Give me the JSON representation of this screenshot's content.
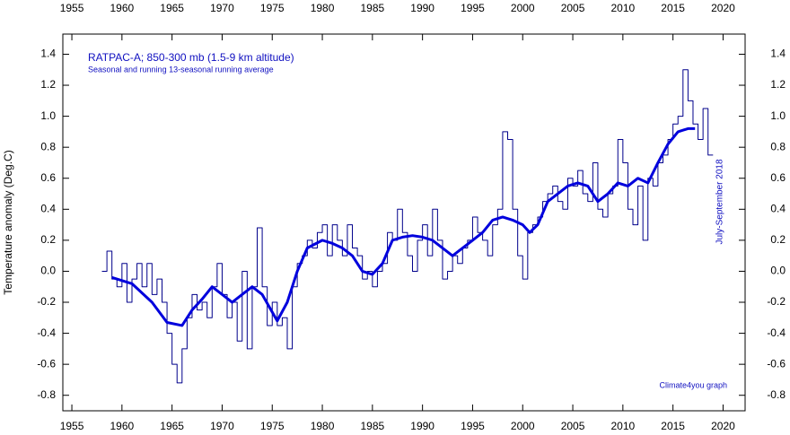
{
  "chart_data": {
    "type": "line",
    "title": "RATPAC-A; 850-300 mb (1.5-9 km altitude)",
    "subtitle": "Seasonal and running 13-seasonal running average",
    "y_label": "Temperature anomaly (Deg.C)",
    "annotations": [
      "July-September 2018",
      "Climate4you graph"
    ],
    "xlim": [
      1954.1,
      2022.2
    ],
    "ylim": [
      -0.9,
      1.53
    ],
    "xticks": [
      1955,
      1960,
      1965,
      1970,
      1975,
      1980,
      1985,
      1990,
      1995,
      2000,
      2005,
      2010,
      2015,
      2020
    ],
    "yticks": [
      {
        "value": -0.8,
        "label": "-0.8"
      },
      {
        "value": -0.6,
        "label": "-0.6"
      },
      {
        "value": -0.4,
        "label": "-0.4"
      },
      {
        "value": -0.2,
        "label": "-0.2"
      },
      {
        "value": 0,
        "label": "0.0"
      },
      {
        "value": 0.2,
        "label": "0.2"
      },
      {
        "value": 0.4,
        "label": "0.4"
      },
      {
        "value": 0.6,
        "label": "0.6"
      },
      {
        "value": 0.8,
        "label": "0.8"
      },
      {
        "value": 1,
        "label": "1.0"
      },
      {
        "value": 1.2,
        "label": "1.2"
      },
      {
        "value": 1.4,
        "label": "1.4"
      }
    ],
    "series": [
      {
        "color": "#00008b",
        "style": "step",
        "x": [
          1958,
          1958.5,
          1959,
          1959.5,
          1960,
          1960.5,
          1961,
          1961.5,
          1962,
          1962.5,
          1963,
          1963.5,
          1964,
          1964.5,
          1965,
          1965.5,
          1966,
          1966.5,
          1967,
          1967.5,
          1968,
          1968.5,
          1969,
          1969.5,
          1970,
          1970.5,
          1971,
          1971.5,
          1972,
          1972.5,
          1973,
          1973.5,
          1974,
          1974.5,
          1975,
          1975.5,
          1976,
          1976.5,
          1977,
          1977.5,
          1978,
          1978.5,
          1979,
          1979.5,
          1980,
          1980.5,
          1981,
          1981.5,
          1982,
          1982.5,
          1983,
          1983.5,
          1984,
          1984.5,
          1985,
          1985.5,
          1986,
          1986.5,
          1987,
          1987.5,
          1988,
          1988.5,
          1989,
          1989.5,
          1990,
          1990.5,
          1991,
          1991.5,
          1992,
          1992.5,
          1993,
          1993.5,
          1994,
          1994.5,
          1995,
          1995.5,
          1996,
          1996.5,
          1997,
          1997.5,
          1998,
          1998.5,
          1999,
          1999.5,
          2000,
          2000.5,
          2001,
          2001.5,
          2002,
          2002.5,
          2003,
          2003.5,
          2004,
          2004.5,
          2005,
          2005.5,
          2006,
          2006.5,
          2007,
          2007.5,
          2008,
          2008.5,
          2009,
          2009.5,
          2010,
          2010.5,
          2011,
          2011.5,
          2012,
          2012.5,
          2013,
          2013.5,
          2014,
          2014.5,
          2015,
          2015.5,
          2016,
          2016.5,
          2017,
          2017.5,
          2018,
          2018.5
        ],
        "values": [
          0.0,
          0.13,
          -0.05,
          -0.1,
          0.05,
          -0.2,
          -0.05,
          0.05,
          -0.1,
          0.05,
          -0.15,
          -0.05,
          -0.2,
          -0.4,
          -0.6,
          -0.72,
          -0.5,
          -0.3,
          -0.15,
          -0.25,
          -0.2,
          -0.3,
          -0.1,
          0.05,
          -0.15,
          -0.3,
          -0.2,
          -0.45,
          0.0,
          -0.5,
          -0.1,
          0.28,
          -0.1,
          -0.35,
          -0.2,
          -0.35,
          -0.3,
          -0.5,
          -0.1,
          0.05,
          0.1,
          0.2,
          0.15,
          0.25,
          0.3,
          0.1,
          0.3,
          0.2,
          0.1,
          0.3,
          0.15,
          0.1,
          -0.05,
          0.0,
          -0.1,
          0.0,
          0.05,
          0.25,
          0.2,
          0.4,
          0.25,
          0.1,
          0.0,
          0.2,
          0.3,
          0.1,
          0.4,
          0.2,
          -0.05,
          0.0,
          0.1,
          0.05,
          0.15,
          0.2,
          0.35,
          0.25,
          0.2,
          0.1,
          0.3,
          0.4,
          0.9,
          0.85,
          0.4,
          0.1,
          -0.05,
          0.25,
          0.3,
          0.35,
          0.45,
          0.5,
          0.55,
          0.45,
          0.4,
          0.6,
          0.55,
          0.65,
          0.5,
          0.45,
          0.7,
          0.4,
          0.35,
          0.5,
          0.55,
          0.85,
          0.7,
          0.4,
          0.3,
          0.55,
          0.2,
          0.6,
          0.55,
          0.7,
          0.75,
          0.85,
          0.95,
          1.0,
          1.3,
          1.1,
          0.95,
          0.85,
          1.05,
          0.75
        ]
      },
      {
        "color": "#0000dd",
        "style": "smooth",
        "x": [
          1959,
          1961,
          1963,
          1964.5,
          1966,
          1967,
          1968,
          1969,
          1970,
          1971,
          1972,
          1973,
          1974,
          1975.5,
          1976.5,
          1977.5,
          1978.5,
          1980,
          1981,
          1982,
          1983,
          1984,
          1985,
          1986,
          1987,
          1988,
          1989,
          1990,
          1991,
          1992,
          1993,
          1994,
          1995,
          1996,
          1997,
          1998,
          1999,
          2000,
          2000.7,
          2001.5,
          2002.5,
          2003.5,
          2004.5,
          2005.5,
          2006.5,
          2007.5,
          2008.5,
          2009.5,
          2010.5,
          2011.5,
          2012.5,
          2013.5,
          2014.5,
          2015.5,
          2016.5,
          2017.2
        ],
        "values": [
          -0.04,
          -0.08,
          -0.2,
          -0.33,
          -0.35,
          -0.25,
          -0.18,
          -0.1,
          -0.15,
          -0.2,
          -0.15,
          -0.1,
          -0.15,
          -0.32,
          -0.2,
          0.0,
          0.15,
          0.2,
          0.18,
          0.15,
          0.1,
          0.0,
          -0.02,
          0.05,
          0.2,
          0.22,
          0.23,
          0.22,
          0.2,
          0.15,
          0.1,
          0.15,
          0.2,
          0.25,
          0.33,
          0.35,
          0.33,
          0.3,
          0.25,
          0.3,
          0.45,
          0.5,
          0.55,
          0.57,
          0.55,
          0.45,
          0.5,
          0.57,
          0.55,
          0.6,
          0.57,
          0.7,
          0.82,
          0.9,
          0.92,
          0.92
        ]
      }
    ]
  }
}
